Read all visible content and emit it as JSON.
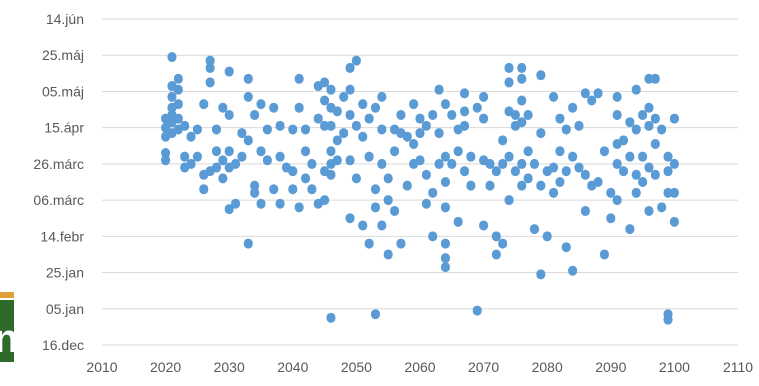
{
  "colors": {
    "marker": "#5b9bd5",
    "grid": "#d9d9d9",
    "axis_text": "#595959",
    "left_strip_green": "#2e6b2a",
    "left_strip_orange": "#e0a035"
  },
  "chart_data": {
    "type": "scatter",
    "title": "",
    "xlabel": "",
    "ylabel": "",
    "xlim": [
      2010,
      2110
    ],
    "x_ticks": [
      "2010",
      "2020",
      "2030",
      "2040",
      "2050",
      "2060",
      "2070",
      "2080",
      "2090",
      "2100",
      "2110"
    ],
    "ylim": [
      "16.dec",
      "14.jún"
    ],
    "y_ticks": [
      "16.dec",
      "05.jan",
      "25.jan",
      "14.febr",
      "06.márc",
      "26.márc",
      "15.ápr",
      "05.máj",
      "25.máj",
      "14.jún"
    ],
    "grid": true,
    "legend": "none",
    "series": [
      {
        "points": [
          [
            2020,
            "20.ápr"
          ],
          [
            2020,
            "10.ápr"
          ],
          [
            2020,
            "01.ápr"
          ],
          [
            2020,
            "28.márc"
          ],
          [
            2020,
            "15.ápr"
          ],
          [
            2021,
            "24.máj"
          ],
          [
            2021,
            "08.máj"
          ],
          [
            2021,
            "02.máj"
          ],
          [
            2021,
            "26.ápr"
          ],
          [
            2021,
            "22.ápr"
          ],
          [
            2021,
            "18.ápr"
          ],
          [
            2021,
            "12.ápr"
          ],
          [
            2022,
            "12.máj"
          ],
          [
            2022,
            "06.máj"
          ],
          [
            2022,
            "28.ápr"
          ],
          [
            2022,
            "20.ápr"
          ],
          [
            2022,
            "14.ápr"
          ],
          [
            2023,
            "16.ápr"
          ],
          [
            2023,
            "30.márc"
          ],
          [
            2023,
            "24.márc"
          ],
          [
            2024,
            "10.ápr"
          ],
          [
            2024,
            "26.márc"
          ],
          [
            2025,
            "14.ápr"
          ],
          [
            2025,
            "30.márc"
          ],
          [
            2026,
            "28.ápr"
          ],
          [
            2026,
            "20.márc"
          ],
          [
            2026,
            "12.márc"
          ],
          [
            2027,
            "22.máj"
          ],
          [
            2027,
            "18.máj"
          ],
          [
            2027,
            "10.máj"
          ],
          [
            2027,
            "22.márc"
          ],
          [
            2028,
            "14.ápr"
          ],
          [
            2028,
            "02.ápr"
          ],
          [
            2028,
            "24.márc"
          ],
          [
            2029,
            "26.ápr"
          ],
          [
            2029,
            "28.márc"
          ],
          [
            2029,
            "18.márc"
          ],
          [
            2030,
            "16.máj"
          ],
          [
            2030,
            "22.ápr"
          ],
          [
            2030,
            "02.ápr"
          ],
          [
            2030,
            "24.márc"
          ],
          [
            2030,
            "01.márc"
          ],
          [
            2031,
            "04.márc"
          ],
          [
            2031,
            "26.márc"
          ],
          [
            2032,
            "12.ápr"
          ],
          [
            2032,
            "30.márc"
          ],
          [
            2033,
            "12.máj"
          ],
          [
            2033,
            "02.máj"
          ],
          [
            2033,
            "08.ápr"
          ],
          [
            2033,
            "10.febr"
          ],
          [
            2034,
            "22.ápr"
          ],
          [
            2034,
            "14.márc"
          ],
          [
            2034,
            "10.márc"
          ],
          [
            2035,
            "28.ápr"
          ],
          [
            2035,
            "02.ápr"
          ],
          [
            2035,
            "04.márc"
          ],
          [
            2036,
            "14.ápr"
          ],
          [
            2036,
            "28.márc"
          ],
          [
            2037,
            "26.ápr"
          ],
          [
            2037,
            "12.márc"
          ],
          [
            2038,
            "16.ápr"
          ],
          [
            2038,
            "30.márc"
          ],
          [
            2038,
            "04.márc"
          ],
          [
            2039,
            "24.márc"
          ],
          [
            2040,
            "14.ápr"
          ],
          [
            2040,
            "22.márc"
          ],
          [
            2040,
            "12.márc"
          ],
          [
            2041,
            "12.máj"
          ],
          [
            2041,
            "26.ápr"
          ],
          [
            2041,
            "02.márc"
          ],
          [
            2042,
            "14.ápr"
          ],
          [
            2042,
            "02.ápr"
          ],
          [
            2042,
            "18.márc"
          ],
          [
            2043,
            "26.márc"
          ],
          [
            2043,
            "12.márc"
          ],
          [
            2044,
            "08.máj"
          ],
          [
            2044,
            "20.ápr"
          ],
          [
            2044,
            "04.márc"
          ],
          [
            2045,
            "10.máj"
          ],
          [
            2045,
            "30.ápr"
          ],
          [
            2045,
            "16.ápr"
          ],
          [
            2045,
            "22.márc"
          ],
          [
            2045,
            "06.márc"
          ],
          [
            2046,
            "06.máj"
          ],
          [
            2046,
            "26.ápr"
          ],
          [
            2046,
            "16.ápr"
          ],
          [
            2046,
            "02.ápr"
          ],
          [
            2046,
            "26.márc"
          ],
          [
            2046,
            "20.márc"
          ],
          [
            2046,
            "31.dec"
          ],
          [
            2047,
            "24.ápr"
          ],
          [
            2047,
            "08.ápr"
          ],
          [
            2047,
            "28.márc"
          ],
          [
            2048,
            "02.máj"
          ],
          [
            2048,
            "12.ápr"
          ],
          [
            2049,
            "06.máj"
          ],
          [
            2049,
            "18.máj"
          ],
          [
            2049,
            "22.ápr"
          ],
          [
            2049,
            "28.márc"
          ],
          [
            2049,
            "24.febr"
          ],
          [
            2050,
            "22.máj"
          ],
          [
            2050,
            "16.ápr"
          ],
          [
            2050,
            "18.márc"
          ],
          [
            2051,
            "28.ápr"
          ],
          [
            2051,
            "10.ápr"
          ],
          [
            2051,
            "20.febr"
          ],
          [
            2052,
            "20.ápr"
          ],
          [
            2052,
            "30.márc"
          ],
          [
            2052,
            "10.febr"
          ],
          [
            2053,
            "26.ápr"
          ],
          [
            2053,
            "12.márc"
          ],
          [
            2053,
            "02.márc"
          ],
          [
            2053,
            "02.jan"
          ],
          [
            2054,
            "02.máj"
          ],
          [
            2054,
            "14.ápr"
          ],
          [
            2054,
            "26.márc"
          ],
          [
            2054,
            "20.febr"
          ],
          [
            2055,
            "18.márc"
          ],
          [
            2055,
            "06.márc"
          ],
          [
            2055,
            "04.febr"
          ],
          [
            2056,
            "14.ápr"
          ],
          [
            2056,
            "02.ápr"
          ],
          [
            2056,
            "28.febr"
          ],
          [
            2057,
            "22.ápr"
          ],
          [
            2057,
            "12.ápr"
          ],
          [
            2057,
            "10.febr"
          ],
          [
            2058,
            "10.ápr"
          ],
          [
            2058,
            "14.márc"
          ],
          [
            2059,
            "28.ápr"
          ],
          [
            2059,
            "06.ápr"
          ],
          [
            2059,
            "26.márc"
          ],
          [
            2060,
            "20.ápr"
          ],
          [
            2060,
            "12.ápr"
          ],
          [
            2060,
            "28.márc"
          ],
          [
            2061,
            "16.ápr"
          ],
          [
            2061,
            "20.márc"
          ],
          [
            2061,
            "04.márc"
          ],
          [
            2062,
            "22.ápr"
          ],
          [
            2062,
            "10.márc"
          ],
          [
            2062,
            "14.febr"
          ],
          [
            2063,
            "06.máj"
          ],
          [
            2063,
            "12.ápr"
          ],
          [
            2063,
            "26.márc"
          ],
          [
            2064,
            "28.ápr"
          ],
          [
            2064,
            "30.márc"
          ],
          [
            2064,
            "16.márc"
          ],
          [
            2064,
            "02.márc"
          ],
          [
            2064,
            "10.febr"
          ],
          [
            2064,
            "02.febr"
          ],
          [
            2064,
            "28.jan"
          ],
          [
            2065,
            "22.ápr"
          ],
          [
            2065,
            "26.márc"
          ],
          [
            2066,
            "14.ápr"
          ],
          [
            2066,
            "02.ápr"
          ],
          [
            2066,
            "22.febr"
          ],
          [
            2067,
            "04.máj"
          ],
          [
            2067,
            "24.ápr"
          ],
          [
            2067,
            "16.ápr"
          ],
          [
            2067,
            "22.márc"
          ],
          [
            2068,
            "30.márc"
          ],
          [
            2068,
            "14.márc"
          ],
          [
            2069,
            "26.ápr"
          ],
          [
            2069,
            "04.jan"
          ],
          [
            2070,
            "02.máj"
          ],
          [
            2070,
            "20.ápr"
          ],
          [
            2070,
            "28.márc"
          ],
          [
            2070,
            "20.febr"
          ],
          [
            2071,
            "14.márc"
          ],
          [
            2071,
            "26.márc"
          ],
          [
            2072,
            "22.márc"
          ],
          [
            2072,
            "14.febr"
          ],
          [
            2072,
            "04.febr"
          ],
          [
            2073,
            "08.ápr"
          ],
          [
            2073,
            "26.márc"
          ],
          [
            2073,
            "10.febr"
          ],
          [
            2074,
            "18.máj"
          ],
          [
            2074,
            "10.máj"
          ],
          [
            2074,
            "24.ápr"
          ],
          [
            2074,
            "30.márc"
          ],
          [
            2074,
            "06.márc"
          ],
          [
            2075,
            "22.ápr"
          ],
          [
            2075,
            "16.ápr"
          ],
          [
            2075,
            "22.márc"
          ],
          [
            2076,
            "18.máj"
          ],
          [
            2076,
            "12.máj"
          ],
          [
            2076,
            "30.ápr"
          ],
          [
            2076,
            "18.ápr"
          ],
          [
            2076,
            "26.márc"
          ],
          [
            2076,
            "14.márc"
          ],
          [
            2077,
            "22.ápr"
          ],
          [
            2077,
            "02.ápr"
          ],
          [
            2077,
            "18.márc"
          ],
          [
            2078,
            "26.márc"
          ],
          [
            2078,
            "18.febr"
          ],
          [
            2079,
            "14.máj"
          ],
          [
            2079,
            "12.ápr"
          ],
          [
            2079,
            "14.márc"
          ],
          [
            2079,
            "24.jan"
          ],
          [
            2080,
            "22.márc"
          ],
          [
            2080,
            "14.febr"
          ],
          [
            2081,
            "02.máj"
          ],
          [
            2081,
            "24.márc"
          ],
          [
            2081,
            "10.márc"
          ],
          [
            2082,
            "20.ápr"
          ],
          [
            2082,
            "02.ápr"
          ],
          [
            2082,
            "16.márc"
          ],
          [
            2083,
            "14.ápr"
          ],
          [
            2083,
            "22.márc"
          ],
          [
            2083,
            "08.febr"
          ],
          [
            2084,
            "26.ápr"
          ],
          [
            2084,
            "30.márc"
          ],
          [
            2084,
            "26.jan"
          ],
          [
            2085,
            "16.ápr"
          ],
          [
            2085,
            "24.márc"
          ],
          [
            2086,
            "04.máj"
          ],
          [
            2086,
            "20.márc"
          ],
          [
            2086,
            "28.febr"
          ],
          [
            2087,
            "30.ápr"
          ],
          [
            2087,
            "14.márc"
          ],
          [
            2088,
            "04.máj"
          ],
          [
            2088,
            "16.márc"
          ],
          [
            2089,
            "02.ápr"
          ],
          [
            2089,
            "04.febr"
          ],
          [
            2090,
            "10.márc"
          ],
          [
            2090,
            "24.febr"
          ],
          [
            2091,
            "02.máj"
          ],
          [
            2091,
            "22.ápr"
          ],
          [
            2091,
            "06.ápr"
          ],
          [
            2091,
            "26.márc"
          ],
          [
            2091,
            "06.márc"
          ],
          [
            2092,
            "08.ápr"
          ],
          [
            2092,
            "22.márc"
          ],
          [
            2093,
            "18.ápr"
          ],
          [
            2093,
            "30.márc"
          ],
          [
            2093,
            "18.febr"
          ],
          [
            2094,
            "06.máj"
          ],
          [
            2094,
            "14.ápr"
          ],
          [
            2094,
            "20.márc"
          ],
          [
            2094,
            "10.márc"
          ],
          [
            2095,
            "22.ápr"
          ],
          [
            2095,
            "30.márc"
          ],
          [
            2095,
            "16.márc"
          ],
          [
            2096,
            "12.máj"
          ],
          [
            2096,
            "26.ápr"
          ],
          [
            2096,
            "16.ápr"
          ],
          [
            2096,
            "24.márc"
          ],
          [
            2096,
            "28.febr"
          ],
          [
            2097,
            "12.máj"
          ],
          [
            2097,
            "20.ápr"
          ],
          [
            2097,
            "06.ápr"
          ],
          [
            2097,
            "20.márc"
          ],
          [
            2098,
            "14.ápr"
          ],
          [
            2098,
            "02.márc"
          ],
          [
            2099,
            "30.márc"
          ],
          [
            2099,
            "22.márc"
          ],
          [
            2099,
            "10.márc"
          ],
          [
            2099,
            "02.jan"
          ],
          [
            2099,
            "30.dec"
          ],
          [
            2100,
            "20.ápr"
          ],
          [
            2100,
            "26.márc"
          ],
          [
            2100,
            "10.márc"
          ],
          [
            2100,
            "22.febr"
          ]
        ]
      }
    ]
  }
}
